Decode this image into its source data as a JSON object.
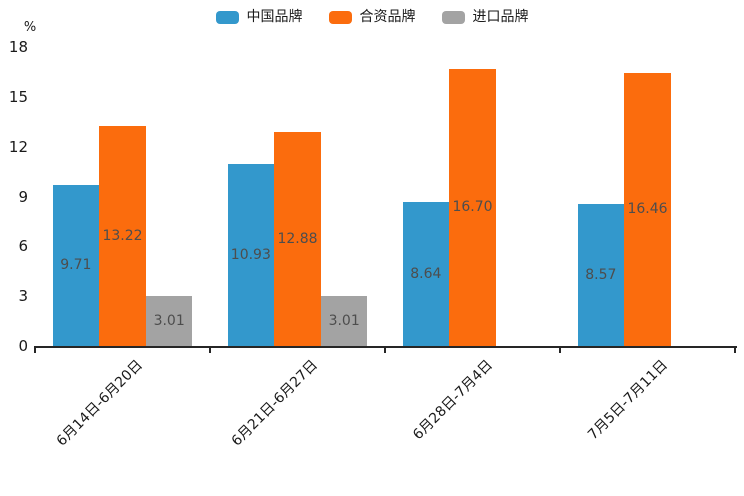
{
  "chart_data": {
    "type": "bar",
    "title": "",
    "ylabel": "%",
    "xlabel": "",
    "ylim": [
      0,
      18
    ],
    "yticks": [
      0,
      3,
      6,
      9,
      12,
      15,
      18
    ],
    "grid": false,
    "legend_position": "top",
    "bar_label_position": "inside-center",
    "value_label_decimals": 2,
    "value_label_color": "#4d4d4d",
    "axis_color": "#262626",
    "categories": [
      "6月14日-6月20日",
      "6月21日-6月27日",
      "6月28日-7月4日",
      "7月5日-7月11日"
    ],
    "series": [
      {
        "name": "中国品牌",
        "color": "#3398CC",
        "values": [
          9.71,
          10.93,
          8.64,
          8.57
        ]
      },
      {
        "name": "合资品牌",
        "color": "#FB6C0D",
        "values": [
          13.22,
          12.88,
          16.7,
          16.46
        ]
      },
      {
        "name": "进口品牌",
        "color": "#A3A3A3",
        "values": [
          3.01,
          3.01,
          null,
          null
        ]
      }
    ]
  }
}
